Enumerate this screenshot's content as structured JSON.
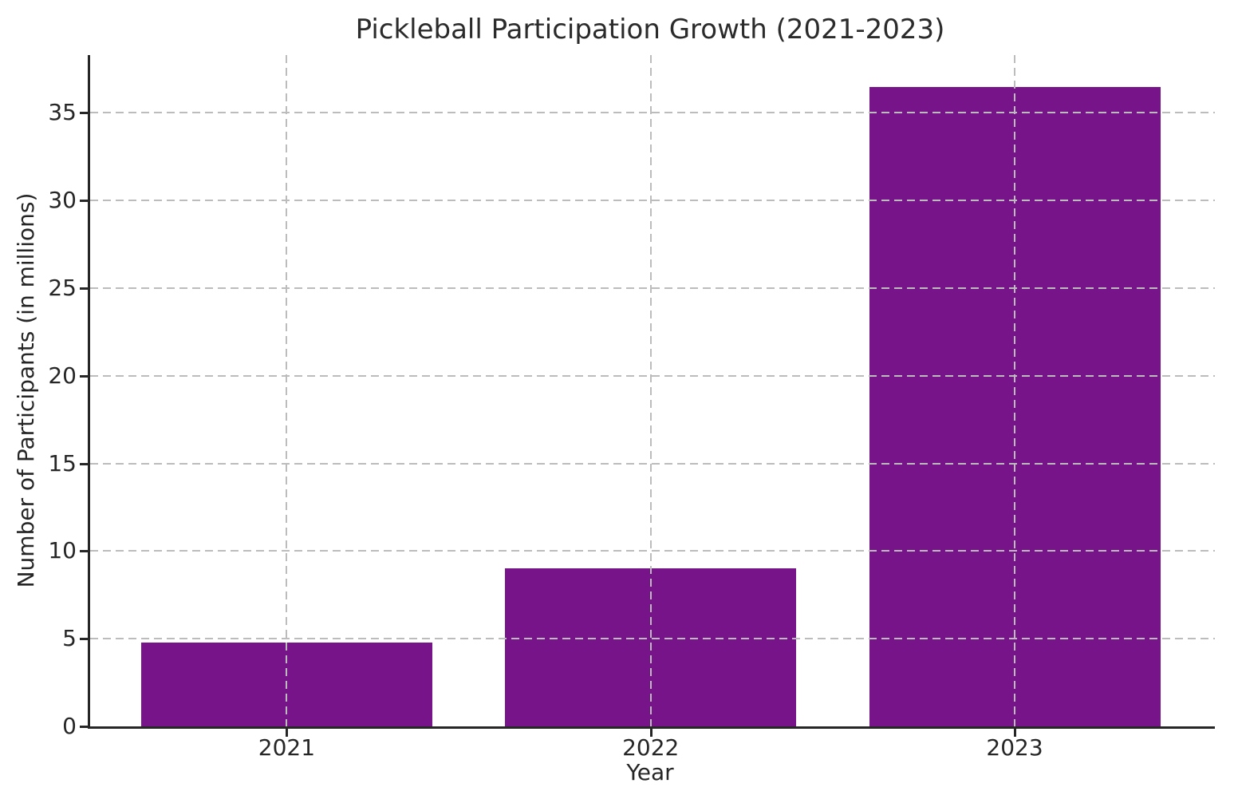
{
  "chart_data": {
    "type": "bar",
    "title": "Pickleball Participation Growth (2021-2023)",
    "xlabel": "Year",
    "ylabel": "Number of Participants (in millions)",
    "categories": [
      "2021",
      "2022",
      "2023"
    ],
    "values": [
      4.8,
      9,
      36.5
    ],
    "ylim": [
      0,
      38.3
    ],
    "yticks": [
      0,
      5,
      10,
      15,
      20,
      25,
      30,
      35
    ],
    "xlim": [
      -0.54,
      2.55
    ],
    "bar_width": 0.8,
    "bar_color": "#77148A",
    "grid": "dashed gray, both axes, drawn above bars",
    "legend_position": "none"
  }
}
